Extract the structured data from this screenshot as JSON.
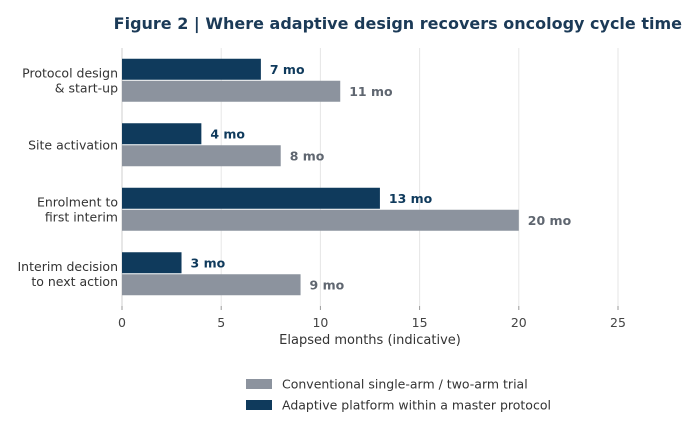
{
  "chart_data": {
    "type": "bar",
    "orientation": "horizontal",
    "title": "Figure 2  |  Where adaptive design recovers oncology cycle time",
    "xlabel": "Elapsed months (indicative)",
    "ylabel": "",
    "xlim": [
      0,
      25
    ],
    "xticks": [
      0,
      5,
      10,
      15,
      20,
      25
    ],
    "xtick_labels": [
      "0",
      "5",
      "10",
      "15",
      "20",
      "25"
    ],
    "grid": "vertical",
    "legend_position": "bottom-center",
    "categories": [
      [
        "Protocol design",
        "& start-up"
      ],
      [
        "Site activation"
      ],
      [
        "Enrolment to",
        "first interim"
      ],
      [
        "Interim decision",
        "to next action"
      ]
    ],
    "series": [
      {
        "name": "Adaptive platform within a master protocol",
        "color": "#0f3a5c",
        "label_color": "#0f3a5c",
        "values": [
          7,
          4,
          13,
          3
        ],
        "labels": [
          "7 mo",
          "4 mo",
          "13 mo",
          "3 mo"
        ]
      },
      {
        "name": "Conventional single-arm / two-arm trial",
        "color": "#8c939e",
        "label_color": "#5f6670",
        "values": [
          11,
          8,
          20,
          9
        ],
        "labels": [
          "11 mo",
          "8 mo",
          "20 mo",
          "9 mo"
        ]
      }
    ],
    "legend": [
      {
        "name": "Conventional single-arm / two-arm trial",
        "color": "#8c939e"
      },
      {
        "name": "Adaptive platform within a master protocol",
        "color": "#0f3a5c"
      }
    ]
  }
}
